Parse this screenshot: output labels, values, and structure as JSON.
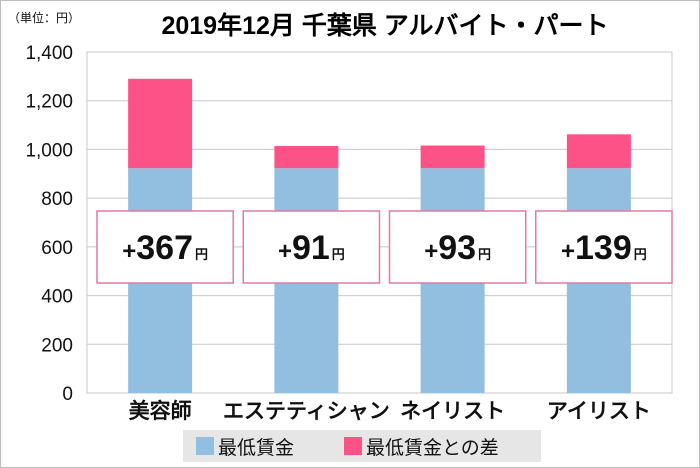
{
  "chart_data": {
    "type": "bar",
    "stacked": true,
    "title": "2019年12月 千葉県 アルバイト・パート",
    "unit_label": "（単位：円）",
    "categories": [
      "美容師",
      "エステティシャン",
      "ネイリスト",
      "アイリスト"
    ],
    "series": [
      {
        "name": "最低賃金",
        "values": [
          923,
          923,
          923,
          923
        ],
        "color": "#92bfe0"
      },
      {
        "name": "最低賃金との差",
        "values": [
          367,
          91,
          93,
          139
        ],
        "color": "#fc5288"
      }
    ],
    "annotations": [
      {
        "plus": "+",
        "value": "367",
        "unit": "円"
      },
      {
        "plus": "+",
        "value": "91",
        "unit": "円"
      },
      {
        "plus": "+",
        "value": "93",
        "unit": "円"
      },
      {
        "plus": "+",
        "value": "139",
        "unit": "円"
      }
    ],
    "ylim": [
      0,
      1400
    ],
    "yticks": [
      0,
      200,
      400,
      600,
      800,
      1000,
      1200,
      1400
    ],
    "ytick_labels": [
      "0",
      "200",
      "400",
      "600",
      "800",
      "1,000",
      "1,200",
      "1,400"
    ],
    "grid": true,
    "legend_position": "bottom",
    "annotation_border_color": "#e07aa8"
  }
}
